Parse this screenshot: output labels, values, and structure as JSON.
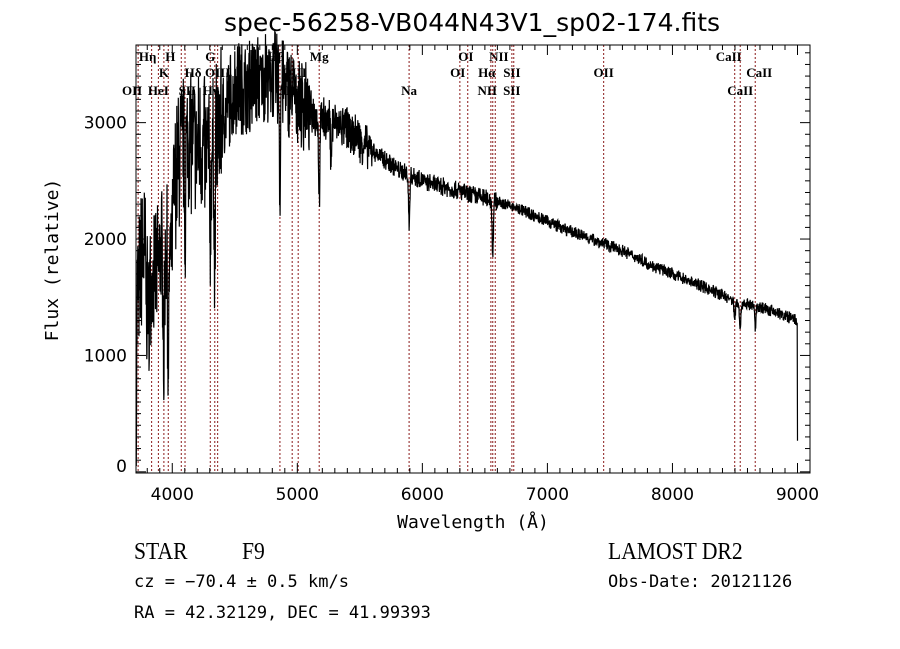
{
  "chart_data": {
    "type": "line",
    "title": "spec-56258-VB044N43V1_sp02-174.fits",
    "xlabel": "Wavelength (Å)",
    "ylabel": "Flux (relative)",
    "xlim": [
      3710,
      9100
    ],
    "ylim": [
      -10,
      3667
    ],
    "xticks": [
      4000,
      5000,
      6000,
      7000,
      8000,
      9000
    ],
    "xtick_labels": [
      "4000",
      "5000",
      "6000",
      "7000",
      "8000",
      "9000"
    ],
    "yticks": [
      0,
      1000,
      2000,
      3000
    ],
    "ytick_labels": [
      "0",
      "1000",
      "2000",
      "3000"
    ],
    "grid": false,
    "series": [
      {
        "name": "spectrum",
        "continuum_knots": [
          [
            3712,
            400
          ],
          [
            3720,
            1500
          ],
          [
            3750,
            1800
          ],
          [
            3780,
            1900
          ],
          [
            3800,
            1400
          ],
          [
            3850,
            1700
          ],
          [
            3900,
            1800
          ],
          [
            3950,
            1900
          ],
          [
            3990,
            1900
          ],
          [
            4020,
            2500
          ],
          [
            4060,
            2700
          ],
          [
            4100,
            2850
          ],
          [
            4150,
            2800
          ],
          [
            4200,
            2850
          ],
          [
            4250,
            2800
          ],
          [
            4300,
            2650
          ],
          [
            4360,
            2950
          ],
          [
            4400,
            3050
          ],
          [
            4500,
            3300
          ],
          [
            4600,
            3300
          ],
          [
            4700,
            3380
          ],
          [
            4800,
            3420
          ],
          [
            4900,
            3300
          ],
          [
            5000,
            3200
          ],
          [
            5100,
            3100
          ],
          [
            5200,
            3030
          ],
          [
            5300,
            3000
          ],
          [
            5400,
            2950
          ],
          [
            5500,
            2850
          ],
          [
            5600,
            2760
          ],
          [
            5700,
            2680
          ],
          [
            5800,
            2600
          ],
          [
            6000,
            2500
          ],
          [
            6200,
            2440
          ],
          [
            6400,
            2380
          ],
          [
            6600,
            2320
          ],
          [
            6800,
            2250
          ],
          [
            7000,
            2150
          ],
          [
            7200,
            2060
          ],
          [
            7400,
            1980
          ],
          [
            7600,
            1900
          ],
          [
            7800,
            1790
          ],
          [
            8000,
            1700
          ],
          [
            8200,
            1610
          ],
          [
            8400,
            1520
          ],
          [
            8500,
            1460
          ],
          [
            8700,
            1420
          ],
          [
            8900,
            1340
          ],
          [
            8990,
            1300
          ],
          [
            8998,
            1250
          ],
          [
            9000,
            250
          ]
        ],
        "absorption": [
          [
            3933,
            900
          ],
          [
            3968,
            1200
          ],
          [
            4102,
            700
          ],
          [
            4304,
            500
          ],
          [
            4340,
            1300
          ],
          [
            4861,
            1000
          ],
          [
            5175,
            700
          ],
          [
            5270,
            300
          ],
          [
            5894,
            450
          ],
          [
            6563,
            450
          ],
          [
            8498,
            150
          ],
          [
            8542,
            250
          ],
          [
            8662,
            200
          ]
        ]
      }
    ],
    "lines": [
      {
        "label": "OII",
        "wavelength": 3727
      },
      {
        "label": "Hη",
        "wavelength": 3835
      },
      {
        "label": "HeI",
        "wavelength": 3889
      },
      {
        "label": "K",
        "wavelength": 3933
      },
      {
        "label": "H",
        "wavelength": 3968
      },
      {
        "label": "SII",
        "wavelength": 4072
      },
      {
        "label": "Hδ",
        "wavelength": 4102
      },
      {
        "label": "G",
        "wavelength": 4304
      },
      {
        "label": "Hγ",
        "wavelength": 4340
      },
      {
        "label": "OIII",
        "wavelength": 4363
      },
      {
        "label": "Hβ",
        "wavelength": 4861
      },
      {
        "label": "OIII",
        "wavelength": 4959
      },
      {
        "label": "OIII",
        "wavelength": 5007
      },
      {
        "label": "Mg",
        "wavelength": 5175
      },
      {
        "label": "Na",
        "wavelength": 5894
      },
      {
        "label": "OI",
        "wavelength": 6300
      },
      {
        "label": "OI",
        "wavelength": 6363
      },
      {
        "label": "NII",
        "wavelength": 6548
      },
      {
        "label": "Hα",
        "wavelength": 6563
      },
      {
        "label": "NII",
        "wavelength": 6583
      },
      {
        "label": "SII",
        "wavelength": 6716
      },
      {
        "label": "SII",
        "wavelength": 6731
      },
      {
        "label": "OII",
        "wavelength": 7450
      },
      {
        "label": "CaII",
        "wavelength": 8498
      },
      {
        "label": "CaII",
        "wavelength": 8542
      },
      {
        "label": "CaII",
        "wavelength": 8662
      }
    ],
    "line_color": "#8b1a1a"
  },
  "info": {
    "object": "STAR",
    "subclass": "F9",
    "survey": "LAMOST DR2",
    "cz": "cz = −70.4 ± 0.5 km/s",
    "obs_date": "Obs-Date: 20121126",
    "coords": "RA =  42.32129, DEC =  41.99393"
  }
}
